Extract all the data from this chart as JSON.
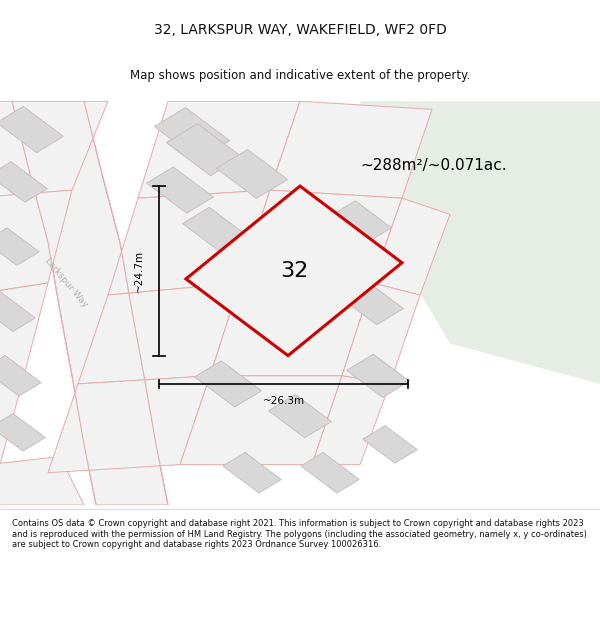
{
  "title": "32, LARKSPUR WAY, WAKEFIELD, WF2 0FD",
  "subtitle": "Map shows position and indicative extent of the property.",
  "area_text": "~288m²/~0.071ac.",
  "label_32": "32",
  "dim_v": "~24.7m",
  "dim_h": "~26.3m",
  "street_label": "Larkspur Way",
  "footer": "Contains OS data © Crown copyright and database right 2021. This information is subject to Crown copyright and database rights 2023 and is reproduced with the permission of HM Land Registry. The polygons (including the associated geometry, namely x, y co-ordinates) are subject to Crown copyright and database rights 2023 Ordnance Survey 100026316.",
  "bg_color": "#f2f2f2",
  "green_bg": "#e5ede5",
  "road_line_color": "#e8aaaa",
  "building_fill": "#d8d8d8",
  "building_outline": "#c8b8b8",
  "plot_color": "#cc0000",
  "title_color": "#111111",
  "footer_color": "#111111",
  "street_label_color": "#b0b0b0"
}
